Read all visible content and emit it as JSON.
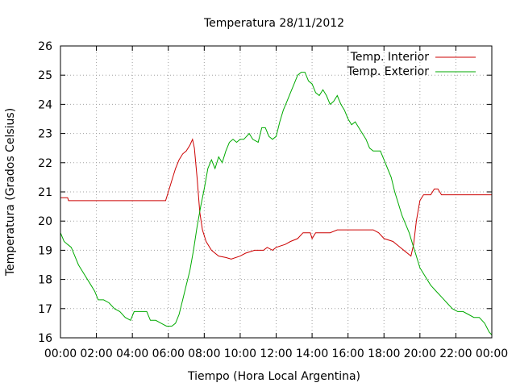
{
  "chart_data": {
    "type": "line",
    "title": "Temperatura 28/11/2012",
    "xlabel": "Tiempo (Hora Local Argentina)",
    "ylabel": "Temperatura (Grados Celsius)",
    "xlim": [
      0,
      24
    ],
    "ylim": [
      16,
      26
    ],
    "x_ticks": [
      "00:00",
      "02:00",
      "04:00",
      "06:00",
      "08:00",
      "10:00",
      "12:00",
      "14:00",
      "16:00",
      "18:00",
      "20:00",
      "22:00",
      "00:00"
    ],
    "y_ticks": [
      "16",
      "17",
      "18",
      "19",
      "20",
      "21",
      "22",
      "23",
      "24",
      "25",
      "26"
    ],
    "grid": true,
    "legend_position": "top-right",
    "x_unit": "hours",
    "series": [
      {
        "name": "Temp. Interior",
        "color": "#cc0000",
        "points": [
          [
            0.0,
            20.8
          ],
          [
            0.4,
            20.8
          ],
          [
            0.45,
            20.7
          ],
          [
            2.0,
            20.7
          ],
          [
            4.0,
            20.7
          ],
          [
            5.85,
            20.7
          ],
          [
            6.0,
            21.0
          ],
          [
            6.2,
            21.4
          ],
          [
            6.4,
            21.8
          ],
          [
            6.6,
            22.1
          ],
          [
            6.8,
            22.3
          ],
          [
            7.0,
            22.4
          ],
          [
            7.2,
            22.6
          ],
          [
            7.35,
            22.8
          ],
          [
            7.45,
            22.5
          ],
          [
            7.6,
            21.5
          ],
          [
            7.75,
            20.3
          ],
          [
            7.9,
            19.7
          ],
          [
            8.1,
            19.3
          ],
          [
            8.4,
            19.0
          ],
          [
            8.8,
            18.8
          ],
          [
            9.2,
            18.75
          ],
          [
            9.5,
            18.7
          ],
          [
            10.0,
            18.8
          ],
          [
            10.3,
            18.9
          ],
          [
            10.8,
            19.0
          ],
          [
            11.3,
            19.0
          ],
          [
            11.5,
            19.1
          ],
          [
            11.8,
            19.0
          ],
          [
            12.0,
            19.1
          ],
          [
            12.5,
            19.2
          ],
          [
            12.8,
            19.3
          ],
          [
            13.2,
            19.4
          ],
          [
            13.5,
            19.6
          ],
          [
            13.9,
            19.6
          ],
          [
            14.0,
            19.4
          ],
          [
            14.2,
            19.6
          ],
          [
            15.0,
            19.6
          ],
          [
            15.4,
            19.7
          ],
          [
            16.0,
            19.7
          ],
          [
            17.4,
            19.7
          ],
          [
            17.7,
            19.6
          ],
          [
            18.0,
            19.4
          ],
          [
            18.5,
            19.3
          ],
          [
            18.9,
            19.1
          ],
          [
            19.2,
            18.95
          ],
          [
            19.5,
            18.8
          ],
          [
            19.65,
            19.2
          ],
          [
            19.8,
            20.0
          ],
          [
            20.0,
            20.7
          ],
          [
            20.2,
            20.9
          ],
          [
            20.6,
            20.9
          ],
          [
            20.8,
            21.1
          ],
          [
            21.0,
            21.1
          ],
          [
            21.2,
            20.9
          ],
          [
            21.5,
            20.9
          ],
          [
            22.0,
            20.9
          ],
          [
            22.2,
            20.9
          ],
          [
            23.0,
            20.9
          ],
          [
            24.0,
            20.9
          ]
        ]
      },
      {
        "name": "Temp. Exterior",
        "color": "#00aa00",
        "points": [
          [
            0.0,
            19.6
          ],
          [
            0.2,
            19.3
          ],
          [
            0.4,
            19.2
          ],
          [
            0.6,
            19.1
          ],
          [
            0.8,
            18.8
          ],
          [
            1.0,
            18.5
          ],
          [
            1.3,
            18.2
          ],
          [
            1.6,
            17.9
          ],
          [
            1.9,
            17.6
          ],
          [
            2.1,
            17.3
          ],
          [
            2.4,
            17.3
          ],
          [
            2.7,
            17.2
          ],
          [
            3.0,
            17.0
          ],
          [
            3.3,
            16.9
          ],
          [
            3.6,
            16.7
          ],
          [
            3.9,
            16.6
          ],
          [
            4.1,
            16.9
          ],
          [
            4.4,
            16.9
          ],
          [
            4.8,
            16.9
          ],
          [
            5.0,
            16.6
          ],
          [
            5.3,
            16.6
          ],
          [
            5.6,
            16.5
          ],
          [
            5.9,
            16.4
          ],
          [
            6.2,
            16.4
          ],
          [
            6.4,
            16.5
          ],
          [
            6.6,
            16.8
          ],
          [
            6.8,
            17.3
          ],
          [
            7.0,
            17.8
          ],
          [
            7.2,
            18.3
          ],
          [
            7.4,
            19.0
          ],
          [
            7.6,
            19.8
          ],
          [
            7.8,
            20.5
          ],
          [
            8.0,
            21.1
          ],
          [
            8.2,
            21.8
          ],
          [
            8.4,
            22.1
          ],
          [
            8.6,
            21.8
          ],
          [
            8.8,
            22.2
          ],
          [
            9.0,
            22.0
          ],
          [
            9.2,
            22.4
          ],
          [
            9.4,
            22.7
          ],
          [
            9.6,
            22.8
          ],
          [
            9.8,
            22.7
          ],
          [
            10.0,
            22.8
          ],
          [
            10.2,
            22.8
          ],
          [
            10.5,
            23.0
          ],
          [
            10.7,
            22.8
          ],
          [
            11.0,
            22.7
          ],
          [
            11.2,
            23.2
          ],
          [
            11.4,
            23.2
          ],
          [
            11.6,
            22.9
          ],
          [
            11.8,
            22.8
          ],
          [
            12.0,
            22.9
          ],
          [
            12.2,
            23.4
          ],
          [
            12.4,
            23.8
          ],
          [
            12.6,
            24.1
          ],
          [
            12.8,
            24.4
          ],
          [
            13.0,
            24.7
          ],
          [
            13.2,
            25.0
          ],
          [
            13.4,
            25.1
          ],
          [
            13.6,
            25.1
          ],
          [
            13.8,
            24.8
          ],
          [
            14.0,
            24.7
          ],
          [
            14.2,
            24.4
          ],
          [
            14.4,
            24.3
          ],
          [
            14.6,
            24.5
          ],
          [
            14.8,
            24.3
          ],
          [
            15.0,
            24.0
          ],
          [
            15.2,
            24.1
          ],
          [
            15.4,
            24.3
          ],
          [
            15.6,
            24.0
          ],
          [
            15.8,
            23.8
          ],
          [
            16.0,
            23.5
          ],
          [
            16.2,
            23.3
          ],
          [
            16.4,
            23.4
          ],
          [
            16.6,
            23.2
          ],
          [
            16.8,
            23.0
          ],
          [
            17.0,
            22.8
          ],
          [
            17.2,
            22.5
          ],
          [
            17.4,
            22.4
          ],
          [
            17.8,
            22.4
          ],
          [
            18.0,
            22.1
          ],
          [
            18.2,
            21.8
          ],
          [
            18.4,
            21.5
          ],
          [
            18.6,
            21.0
          ],
          [
            18.8,
            20.6
          ],
          [
            19.0,
            20.2
          ],
          [
            19.2,
            19.9
          ],
          [
            19.4,
            19.6
          ],
          [
            19.6,
            19.2
          ],
          [
            19.8,
            18.8
          ],
          [
            20.0,
            18.4
          ],
          [
            20.3,
            18.1
          ],
          [
            20.6,
            17.8
          ],
          [
            20.9,
            17.6
          ],
          [
            21.2,
            17.4
          ],
          [
            21.5,
            17.2
          ],
          [
            21.8,
            17.0
          ],
          [
            22.1,
            16.9
          ],
          [
            22.4,
            16.9
          ],
          [
            22.7,
            16.8
          ],
          [
            23.0,
            16.7
          ],
          [
            23.3,
            16.7
          ],
          [
            23.6,
            16.5
          ],
          [
            23.85,
            16.2
          ],
          [
            24.0,
            16.1
          ]
        ]
      }
    ]
  }
}
